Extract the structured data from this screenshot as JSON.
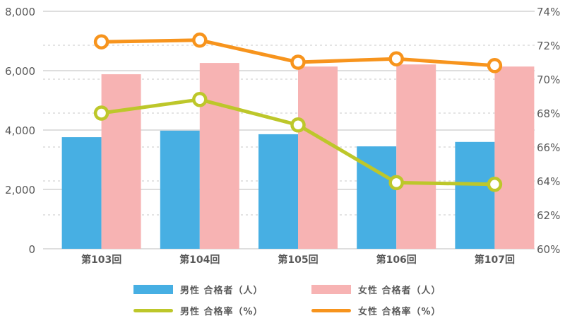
{
  "chart_data": {
    "type": "bar+line",
    "title": "",
    "categories": [
      "第103回",
      "第104回",
      "第105回",
      "第106回",
      "第107回"
    ],
    "left_axis": {
      "ylim": [
        0,
        8000
      ],
      "ticks": [
        0,
        2000,
        4000,
        6000,
        8000
      ],
      "tick_labels": [
        "0",
        "2,000",
        "4,000",
        "6,000",
        "8,000"
      ],
      "label": ""
    },
    "right_axis": {
      "ylim": [
        60,
        74
      ],
      "ticks": [
        60,
        62,
        64,
        66,
        68,
        70,
        72,
        74
      ],
      "tick_labels": [
        "60%",
        "62%",
        "64%",
        "66%",
        "68%",
        "70%",
        "72%",
        "74%"
      ],
      "label": ""
    },
    "series": [
      {
        "name": "男性 合格者（人）",
        "type": "bar",
        "axis": "left",
        "color": "#47AFE3",
        "values": [
          3760,
          3980,
          3860,
          3450,
          3600
        ]
      },
      {
        "name": "女性 合格者（人）",
        "type": "bar",
        "axis": "left",
        "color": "#F7B3B3",
        "values": [
          5880,
          6260,
          6140,
          6210,
          6140
        ]
      },
      {
        "name": "男性 合格率（%）",
        "type": "line",
        "axis": "right",
        "color": "#BDC72A",
        "values": [
          68.0,
          68.8,
          67.3,
          63.9,
          63.8
        ]
      },
      {
        "name": "女性 合格率（%）",
        "type": "line",
        "axis": "right",
        "color": "#F7941D",
        "values": [
          72.2,
          72.3,
          71.0,
          71.2,
          70.8
        ]
      }
    ],
    "grid": true,
    "legend_position": "bottom"
  },
  "legend": {
    "items": [
      {
        "label": "男性 合格者（人）",
        "kind": "box",
        "color": "#47AFE3"
      },
      {
        "label": "女性 合格者（人）",
        "kind": "box",
        "color": "#F7B3B3"
      },
      {
        "label": "男性 合格率（%）",
        "kind": "line",
        "color": "#BDC72A"
      },
      {
        "label": "女性 合格率（%）",
        "kind": "line",
        "color": "#F7941D"
      }
    ]
  }
}
